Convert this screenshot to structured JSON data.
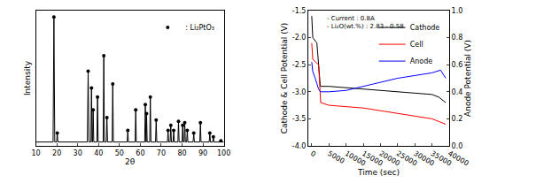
{
  "chart_data": [
    {
      "type": "line",
      "xlabel": "2θ",
      "ylabel": "Intensity",
      "xlim": [
        10,
        100
      ],
      "xticks": [
        10,
        20,
        30,
        40,
        50,
        60,
        70,
        80,
        90,
        100
      ],
      "ylim": [
        0,
        105
      ],
      "yticks": [],
      "tick_labels": "x",
      "grid": false,
      "legend": "upper right",
      "series": [
        {
          "type": "line",
          "color": "#000000",
          "line_style": "solid",
          "x": [
            10,
            18.2,
            18.6,
            19.0,
            19.9,
            20.2,
            20.5,
            34.6,
            35.0,
            35.4,
            36.3,
            36.6,
            36.9,
            37.1,
            37.4,
            37.7,
            39.2,
            39.5,
            39.8,
            42.2,
            42.5,
            42.8,
            43.7,
            44.0,
            44.3,
            46.5,
            46.8,
            47.1,
            53.7,
            54.0,
            54.3,
            57.5,
            57.8,
            58.1,
            62.1,
            62.4,
            62.7,
            62.8,
            63.0,
            63.3,
            64.5,
            64.8,
            65.1,
            67.3,
            67.6,
            67.9,
            73.0,
            73.3,
            73.6,
            74.3,
            74.6,
            74.9,
            75.7,
            76.0,
            76.3,
            78.0,
            78.3,
            78.6,
            80.0,
            80.3,
            80.6,
            81.0,
            81.3,
            81.6,
            82.2,
            82.5,
            82.8,
            85.3,
            85.6,
            85.9,
            88.5,
            88.8,
            89.1,
            93.0,
            93.3,
            93.6,
            94.7,
            95.0,
            95.3,
            98.3,
            98.6,
            98.9,
            100
          ],
          "values": [
            3,
            3,
            100,
            3,
            3,
            10,
            3,
            3,
            58,
            3,
            3,
            45,
            3,
            3,
            28,
            3,
            3,
            38,
            3,
            3,
            70,
            3,
            3,
            22,
            3,
            3,
            48,
            3,
            3,
            12,
            3,
            3,
            28,
            3,
            3,
            32,
            3,
            3,
            25,
            3,
            3,
            38,
            3,
            3,
            20,
            3,
            3,
            12,
            3,
            3,
            16,
            3,
            3,
            12,
            3,
            3,
            19,
            3,
            3,
            16,
            3,
            3,
            18,
            3,
            3,
            12,
            3,
            3,
            10,
            3,
            3,
            18,
            3,
            3,
            10,
            3,
            3,
            7,
            3,
            3,
            4,
            3,
            3
          ]
        },
        {
          "type": "scatter",
          "name": ": Li₂PtO₃",
          "color": "#000000",
          "marker": "circle",
          "x": [
            18.6,
            20.2,
            35.0,
            36.6,
            37.4,
            39.5,
            42.5,
            44.0,
            46.8,
            54.0,
            57.8,
            62.4,
            63.0,
            64.8,
            67.6,
            73.3,
            74.6,
            76.0,
            78.3,
            80.3,
            81.3,
            82.5,
            85.6,
            88.8,
            93.3,
            95.0,
            98.6
          ],
          "values": [
            100,
            10,
            58,
            45,
            28,
            38,
            70,
            22,
            48,
            12,
            28,
            32,
            25,
            38,
            20,
            12,
            16,
            12,
            19,
            16,
            18,
            12,
            10,
            18,
            10,
            7,
            4
          ]
        }
      ]
    },
    {
      "type": "line",
      "xlabel": "Time (sec)",
      "ylabel": "Cathode & Cell Potential (V)",
      "y2label": "Anode Potential (V)",
      "xlim": [
        -1000,
        40000
      ],
      "xticks": [
        0,
        5000,
        10000,
        15000,
        20000,
        25000,
        30000,
        35000,
        40000
      ],
      "ylim": [
        -4.0,
        -1.5
      ],
      "yticks": [
        {
          "value": -4,
          "label": "-4.0"
        },
        -3.5,
        {
          "value": -3,
          "label": "-3.0"
        },
        -2.5,
        {
          "value": -2,
          "label": "-2.0"
        },
        -1.5
      ],
      "y2lim": [
        0,
        1
      ],
      "y2ticks": [
        {
          "value": 0,
          "label": "0.0"
        },
        0.2,
        0.4,
        0.6,
        0.8,
        {
          "value": 1,
          "label": "1.0"
        }
      ],
      "grid": false,
      "legend": "upper right",
      "annotations": [
        "- Current : 0.8A",
        "- Li₂O(wt.%) : 2.83 - 0.58"
      ],
      "series": [
        {
          "name": "Cathode",
          "color": "#000000",
          "line_style": "solid",
          "x": [
            0,
            300,
            1500,
            2500,
            5000,
            15000,
            25000,
            35000,
            37000,
            39000
          ],
          "values": [
            -1.6,
            -2.0,
            -2.1,
            -2.9,
            -2.9,
            -2.95,
            -3.0,
            -3.05,
            -3.1,
            -3.2
          ]
        },
        {
          "name": "Cell",
          "color": "#ff0000",
          "line_style": "solid",
          "x": [
            0,
            300,
            2000,
            2600,
            5000,
            15000,
            25000,
            35000,
            37000,
            39000
          ],
          "values": [
            -2.1,
            -2.4,
            -2.5,
            -3.2,
            -3.25,
            -3.3,
            -3.4,
            -3.5,
            -3.55,
            -3.6
          ]
        },
        {
          "name": "Anode",
          "color": "#0000ff",
          "line_style": "solid",
          "axis": "y2",
          "x": [
            0,
            300,
            1000,
            2000,
            2500,
            5000,
            10000,
            15000,
            20000,
            25000,
            30000,
            35000,
            37500,
            38500,
            39000
          ],
          "values": [
            0.62,
            0.55,
            0.5,
            0.42,
            0.4,
            0.4,
            0.41,
            0.44,
            0.47,
            0.5,
            0.52,
            0.54,
            0.56,
            0.52,
            0.5
          ]
        }
      ]
    }
  ]
}
